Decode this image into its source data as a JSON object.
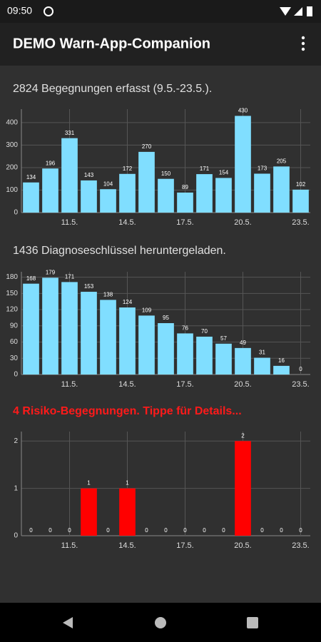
{
  "status_bar": {
    "time": "09:50"
  },
  "app_bar": {
    "title": "DEMO Warn-App-Companion"
  },
  "chart_data": [
    {
      "type": "bar",
      "title": "2824 Begegnungen erfasst (9.5.-23.5.).",
      "title_color": "#e0e0e0",
      "categories": [
        null,
        null,
        "11.5.",
        null,
        null,
        "14.5.",
        null,
        null,
        "17.5.",
        null,
        null,
        "20.5.",
        null,
        null,
        "23.5."
      ],
      "values": [
        134,
        196,
        331,
        143,
        104,
        172,
        270,
        150,
        89,
        171,
        154,
        430,
        173,
        205,
        102
      ],
      "color": "#80deff",
      "ylim": [
        0,
        460
      ],
      "yticks": [
        0,
        100,
        200,
        300,
        400
      ],
      "grid": true
    },
    {
      "type": "bar",
      "title": "1436 Diagnoseschlüssel heruntergeladen.",
      "title_color": "#e0e0e0",
      "categories": [
        null,
        null,
        "11.5.",
        null,
        null,
        "14.5.",
        null,
        null,
        "17.5.",
        null,
        null,
        "20.5.",
        null,
        null,
        "23.5."
      ],
      "values": [
        168,
        179,
        171,
        153,
        138,
        124,
        109,
        95,
        76,
        70,
        57,
        49,
        31,
        16,
        0
      ],
      "color": "#80deff",
      "ylim": [
        0,
        190
      ],
      "yticks": [
        0,
        30,
        60,
        90,
        120,
        150,
        180
      ],
      "grid": true
    },
    {
      "type": "bar",
      "title": "4 Risiko-Begegnungen. Tippe für Details...",
      "title_color": "#ff1a1a",
      "categories": [
        null,
        null,
        "11.5.",
        null,
        null,
        "14.5.",
        null,
        null,
        "17.5.",
        null,
        null,
        "20.5.",
        null,
        null,
        "23.5."
      ],
      "values": [
        0,
        0,
        0,
        1,
        0,
        1,
        0,
        0,
        0,
        0,
        0,
        2,
        0,
        0,
        0
      ],
      "color": "#ff0000",
      "ylim": [
        0,
        2.2
      ],
      "yticks": [
        0,
        1,
        2
      ],
      "grid": true
    }
  ]
}
